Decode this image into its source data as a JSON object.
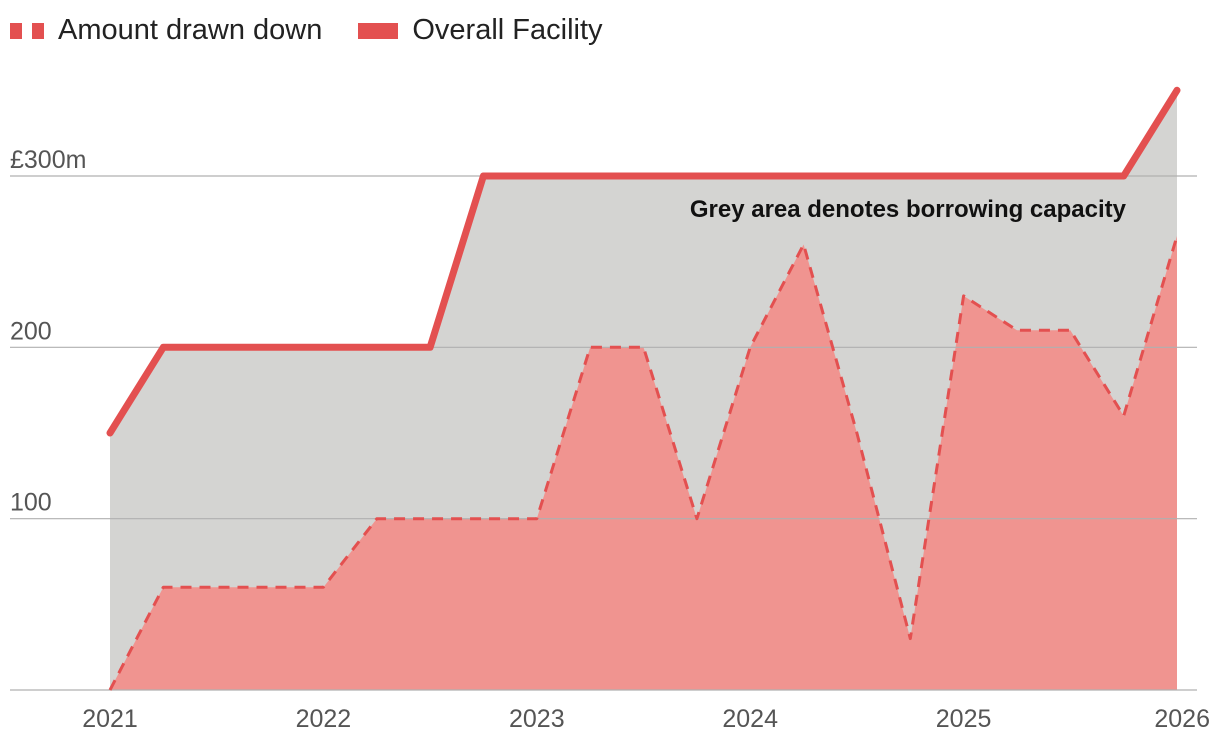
{
  "legend": {
    "drawn_label": "Amount drawn down",
    "facility_label": "Overall Facility"
  },
  "chart_data": {
    "type": "line",
    "annotation": "Grey area denotes borrowing capacity",
    "y_tick_labels": [
      "£300m",
      "200",
      "100"
    ],
    "y_ticks": [
      300,
      200,
      100
    ],
    "x_tick_labels": [
      "2021",
      "2022",
      "2023",
      "2024",
      "2025",
      "2026"
    ],
    "x_ticks": [
      2021,
      2022,
      2023,
      2024,
      2025,
      2026
    ],
    "xlim": [
      2021,
      2026
    ],
    "ylim": [
      0,
      350
    ],
    "grid": true,
    "legend_position": "top-left",
    "colors": {
      "drawn": "#e35050",
      "drawn_fill": "#f09490",
      "facility": "#e35050",
      "capacity_fill": "#d4d4d2",
      "grid": "#b0b0b0",
      "axis_text": "#555555"
    },
    "series": [
      {
        "name": "Overall Facility",
        "style": "solid",
        "points": [
          [
            2021.0,
            150
          ],
          [
            2021.25,
            200
          ],
          [
            2021.75,
            200
          ],
          [
            2022.25,
            200
          ],
          [
            2022.5,
            200
          ],
          [
            2022.75,
            300
          ],
          [
            2023.0,
            300
          ],
          [
            2025.0,
            300
          ],
          [
            2025.75,
            300
          ],
          [
            2026.0,
            350
          ]
        ]
      },
      {
        "name": "Amount drawn down",
        "style": "dashed",
        "points": [
          [
            2021.0,
            0
          ],
          [
            2021.25,
            60
          ],
          [
            2021.5,
            60
          ],
          [
            2021.75,
            60
          ],
          [
            2022.0,
            60
          ],
          [
            2022.25,
            100
          ],
          [
            2022.5,
            100
          ],
          [
            2022.75,
            100
          ],
          [
            2023.0,
            100
          ],
          [
            2023.25,
            200
          ],
          [
            2023.5,
            200
          ],
          [
            2023.75,
            100
          ],
          [
            2024.0,
            200
          ],
          [
            2024.25,
            260
          ],
          [
            2024.5,
            150
          ],
          [
            2024.75,
            30
          ],
          [
            2025.0,
            230
          ],
          [
            2025.25,
            210
          ],
          [
            2025.5,
            210
          ],
          [
            2025.75,
            160
          ],
          [
            2026.0,
            265
          ]
        ]
      }
    ]
  }
}
